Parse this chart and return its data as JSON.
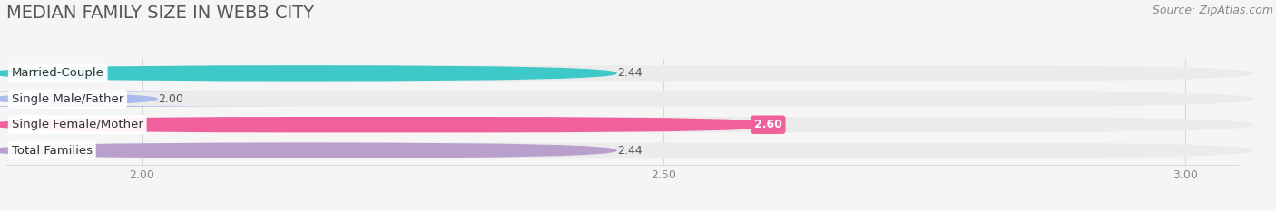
{
  "title": "MEDIAN FAMILY SIZE IN WEBB CITY",
  "source": "Source: ZipAtlas.com",
  "categories": [
    "Married-Couple",
    "Single Male/Father",
    "Single Female/Mother",
    "Total Families"
  ],
  "values": [
    2.44,
    2.0,
    2.6,
    2.44
  ],
  "bar_colors": [
    "#3ec8c8",
    "#aabcee",
    "#f0609a",
    "#b89fcc"
  ],
  "value_labels": [
    "2.44",
    "2.00",
    "2.60",
    "2.44"
  ],
  "xlim_left": 1.87,
  "xlim_right": 3.05,
  "xstart": 2.0,
  "xticks": [
    2.0,
    2.5,
    3.0
  ],
  "xtick_labels": [
    "2.00",
    "2.50",
    "3.00"
  ],
  "bg_color": "#f5f5f5",
  "bar_bg_color": "#ebebeb",
  "title_fontsize": 14,
  "source_fontsize": 9,
  "label_fontsize": 9.5,
  "value_fontsize": 9
}
